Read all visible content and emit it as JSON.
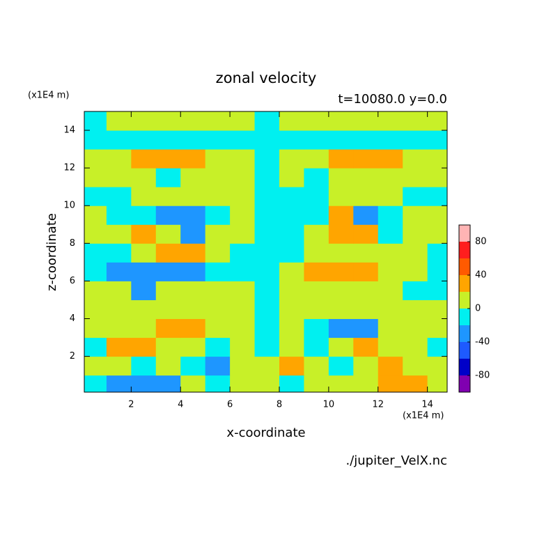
{
  "chart_data": {
    "type": "contour",
    "title": "zonal velocity",
    "subtitle": "t=10080.0 y=0.0",
    "x_label": "x-coordinate",
    "y_label": "z-coordinate",
    "x_unit": "(x1E4 m)",
    "y_unit": "(x1E4 m)",
    "source": "./jupiter_VelX.nc",
    "xlim": [
      0.1,
      14.8
    ],
    "ylim": [
      0.1,
      15.0
    ],
    "xticks": [
      2,
      4,
      6,
      8,
      10,
      12,
      14
    ],
    "yticks": [
      2,
      4,
      6,
      8,
      10,
      12,
      14
    ],
    "x": [
      0.5,
      1.5,
      2.5,
      3.5,
      4.5,
      5.5,
      6.5,
      7.5,
      8.5,
      9.5,
      10.5,
      11.5,
      12.5,
      13.5,
      14.5
    ],
    "z": [
      0.5,
      1.5,
      2.5,
      3.5,
      4.5,
      5.5,
      6.5,
      7.5,
      8.5,
      9.5,
      10.5,
      11.5,
      12.5,
      13.5,
      14.5
    ],
    "values": [
      [
        -10,
        -30,
        -30,
        -30,
        10,
        -10,
        10,
        10,
        -10,
        10,
        10,
        10,
        30,
        30,
        10
      ],
      [
        10,
        10,
        -10,
        10,
        -10,
        -30,
        10,
        10,
        30,
        10,
        -10,
        10,
        30,
        10,
        10
      ],
      [
        -10,
        30,
        30,
        10,
        10,
        -10,
        10,
        -10,
        10,
        -10,
        10,
        30,
        10,
        10,
        -10
      ],
      [
        10,
        10,
        10,
        30,
        30,
        10,
        10,
        -10,
        10,
        -10,
        -30,
        -30,
        10,
        10,
        10
      ],
      [
        10,
        10,
        10,
        10,
        10,
        10,
        10,
        -10,
        10,
        10,
        10,
        10,
        10,
        10,
        10
      ],
      [
        10,
        10,
        -30,
        10,
        10,
        10,
        10,
        -10,
        10,
        10,
        10,
        10,
        10,
        -10,
        -10
      ],
      [
        -10,
        -30,
        -30,
        -30,
        -30,
        -10,
        -10,
        -10,
        10,
        30,
        30,
        30,
        10,
        10,
        -10
      ],
      [
        -10,
        -10,
        10,
        30,
        30,
        10,
        -10,
        -10,
        -10,
        10,
        10,
        10,
        10,
        10,
        -10
      ],
      [
        10,
        10,
        30,
        10,
        -30,
        10,
        10,
        -10,
        -10,
        10,
        30,
        30,
        -10,
        10,
        10
      ],
      [
        10,
        -10,
        -10,
        -30,
        -30,
        -10,
        10,
        -10,
        -10,
        -10,
        30,
        -30,
        -10,
        10,
        10
      ],
      [
        -10,
        -10,
        10,
        10,
        10,
        10,
        10,
        -10,
        -10,
        -10,
        10,
        10,
        10,
        -10,
        -10
      ],
      [
        10,
        10,
        10,
        -10,
        10,
        10,
        10,
        -10,
        10,
        -10,
        10,
        10,
        10,
        10,
        10
      ],
      [
        10,
        10,
        30,
        30,
        30,
        10,
        10,
        -10,
        10,
        10,
        30,
        30,
        30,
        10,
        10
      ],
      [
        -10,
        -10,
        -10,
        -10,
        -10,
        -10,
        -10,
        -10,
        -10,
        -10,
        -10,
        -10,
        -10,
        -10,
        -10
      ],
      [
        -10,
        10,
        10,
        10,
        10,
        10,
        10,
        -10,
        10,
        10,
        10,
        10,
        10,
        10,
        10
      ]
    ],
    "levels": [
      -100,
      -80,
      -60,
      -40,
      -20,
      0,
      20,
      40,
      60,
      80,
      100
    ],
    "colors": [
      "#8000b0",
      "#0000c8",
      "#1e5aff",
      "#1e96ff",
      "#00f0f0",
      "#c8f028",
      "#ffa500",
      "#ff5a00",
      "#ff1e1e",
      "#ffb4b4"
    ],
    "colorbar_ticks": [
      -80,
      -40,
      0,
      40,
      80
    ]
  }
}
